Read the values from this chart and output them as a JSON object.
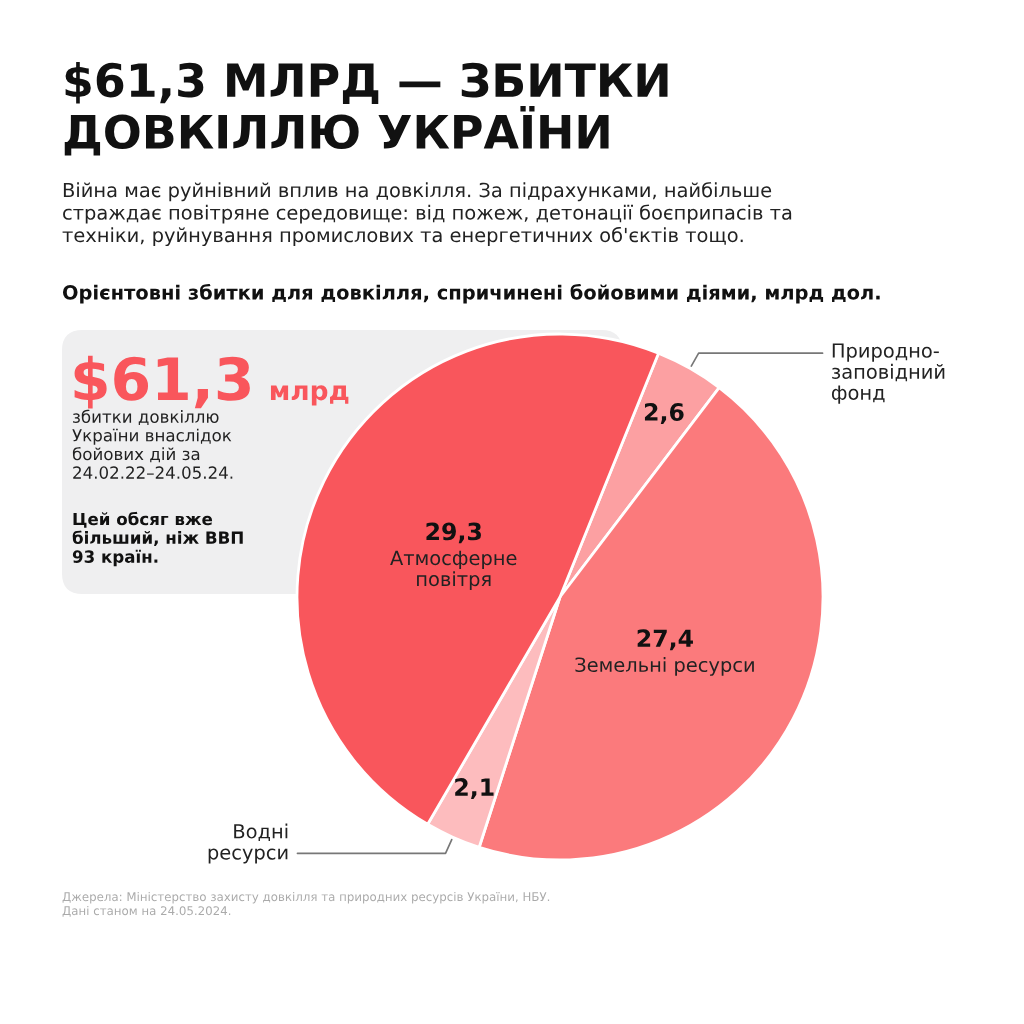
{
  "chart_data": {
    "type": "pie",
    "title": "$61,3 МЛРД — ЗБИТКИ ДОВКІЛЛЮ УКРАЇНИ",
    "subtitle": "Війна має руйнівний вплив на довкілля. За підрахунками, найбільше страждає повітряне середовище: від пожеж, детонації боєприпасів та техніки, руйнування промислових та енергетичних об'єктів тощо.",
    "categories": [
      "Природно-заповідний фонд",
      "Земельні ресурси",
      "Водні ресурси",
      "Атмосферне повітря"
    ],
    "values": [
      2.6,
      27.4,
      2.1,
      29.3
    ],
    "value_labels": [
      "2,6",
      "27,4",
      "2,1",
      "29,3"
    ],
    "colors": [
      "#fca0a2",
      "#fb7a7c",
      "#fdbcbe",
      "#f9565c"
    ],
    "annotations": [
      "Орієнтовні збитки для довкілля, спричинені бойовими діями, млрд дол.",
      "$61,3",
      "млрд",
      "збитки довкіллю України внаслідок бойових дій за 24.02.22–24.05.24.",
      "Цей обсяг вже більший, ніж ВВП 93 країн.",
      "Джерела: Міністерство захисту довкілля та природних ресурсів України, НБУ.",
      "Дані станом на 24.05.2024."
    ]
  }
}
